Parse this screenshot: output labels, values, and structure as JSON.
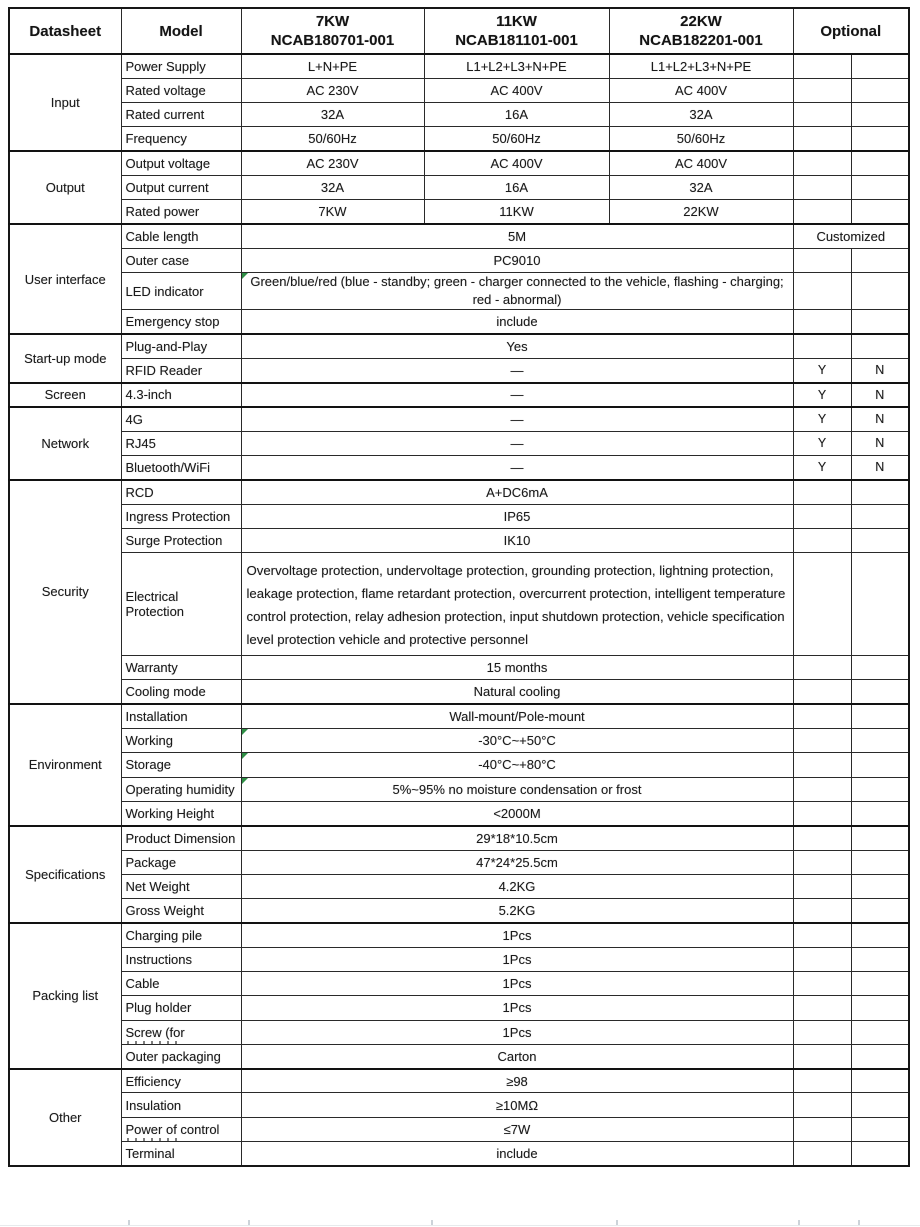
{
  "header": {
    "datasheet": "Datasheet",
    "model": "Model",
    "models": [
      {
        "power": "7KW",
        "code": "NCAB180701-001"
      },
      {
        "power": "11KW",
        "code": "NCAB181101-001"
      },
      {
        "power": "22KW",
        "code": "NCAB182201-001"
      }
    ],
    "optional": "Optional"
  },
  "optional_yes": "Y",
  "optional_no": "N",
  "sections": [
    {
      "name": "Input",
      "rows": [
        {
          "label": "Power Supply",
          "values": [
            "L+N+PE",
            "L1+L2+L3+N+PE",
            "L1+L2+L3+N+PE"
          ]
        },
        {
          "label": "Rated voltage",
          "values": [
            "AC 230V",
            "AC 400V",
            "AC 400V"
          ]
        },
        {
          "label": "Rated current",
          "values": [
            "32A",
            "16A",
            "32A"
          ]
        },
        {
          "label": "Frequency",
          "values": [
            "50/60Hz",
            "50/60Hz",
            "50/60Hz"
          ]
        }
      ]
    },
    {
      "name": "Output",
      "rows": [
        {
          "label": "Output voltage",
          "values": [
            "AC 230V",
            "AC 400V",
            "AC 400V"
          ]
        },
        {
          "label": "Output current",
          "values": [
            "32A",
            "16A",
            "32A"
          ]
        },
        {
          "label": "Rated power",
          "values": [
            "7KW",
            "11KW",
            "22KW"
          ]
        }
      ]
    },
    {
      "name": "User interface",
      "rows": [
        {
          "label": "Cable length",
          "span": "5M",
          "optional": "Customized"
        },
        {
          "label": "Outer case",
          "span": "PC9010"
        },
        {
          "label": "LED indicator",
          "span": "Green/blue/red (blue - standby; green - charger connected to the vehicle, flashing - charging; red - abnormal)"
        },
        {
          "label": "Emergency stop",
          "span": "include"
        }
      ]
    },
    {
      "name": "Start-up mode",
      "rows": [
        {
          "label": "Plug-and-Play",
          "span": "Yes"
        },
        {
          "label": "RFID Reader",
          "span": "—",
          "yn": true
        }
      ]
    },
    {
      "name": "Screen",
      "rows": [
        {
          "label": "4.3-inch",
          "span": "—",
          "yn": true
        }
      ]
    },
    {
      "name": "Network",
      "rows": [
        {
          "label": "4G",
          "span": "—",
          "yn": true
        },
        {
          "label": "RJ45",
          "span": "—",
          "yn": true
        },
        {
          "label": "Bluetooth/WiFi",
          "span": "—",
          "yn": true
        }
      ]
    },
    {
      "name": "Security",
      "rows": [
        {
          "label": "RCD",
          "span": "A+DC6mA"
        },
        {
          "label": "Ingress Protection",
          "span": "IP65"
        },
        {
          "label": "Surge Protection",
          "span": "IK10"
        },
        {
          "label": "Electrical Protection",
          "span": "Overvoltage protection, undervoltage protection, grounding protection, lightning protection, leakage protection, flame retardant protection, overcurrent protection, intelligent temperature control protection, relay adhesion protection, input shutdown protection, vehicle specification level protection vehicle and protective personnel"
        },
        {
          "label": "Warranty",
          "span": "15 months"
        },
        {
          "label": "Cooling mode",
          "span": "Natural cooling"
        }
      ]
    },
    {
      "name": "Environment",
      "rows": [
        {
          "label": "Installation",
          "span": "Wall-mount/Pole-mount"
        },
        {
          "label": "Working",
          "span": "-30°C~+50°C"
        },
        {
          "label": "Storage",
          "span": "-40°C~+80°C"
        },
        {
          "label": "Operating humidity",
          "span": "5%~95%  no moisture condensation or frost"
        },
        {
          "label": "Working Height",
          "span": "<2000M"
        }
      ]
    },
    {
      "name": "Specifications",
      "rows": [
        {
          "label": "Product Dimension",
          "span": "29*18*10.5cm"
        },
        {
          "label": "Package",
          "span": "47*24*25.5cm"
        },
        {
          "label": "Net Weight",
          "span": "4.2KG"
        },
        {
          "label": "Gross Weight",
          "span": "5.2KG"
        }
      ]
    },
    {
      "name": "Packing list",
      "rows": [
        {
          "label": "Charging pile",
          "span": "1Pcs"
        },
        {
          "label": "Instructions",
          "span": "1Pcs"
        },
        {
          "label": "Cable",
          "span": "1Pcs"
        },
        {
          "label": "Plug holder",
          "span": "1Pcs"
        },
        {
          "label": "Screw (for",
          "span": "1Pcs",
          "clipped": true
        },
        {
          "label": "Outer packaging",
          "span": "Carton"
        }
      ]
    },
    {
      "name": "Other",
      "rows": [
        {
          "label": "Efficiency",
          "span": "≥98"
        },
        {
          "label": "Insulation",
          "span": "≥10MΩ"
        },
        {
          "label": "Power of control",
          "span": "≤7W",
          "clipped": true
        },
        {
          "label": "Terminal",
          "span": "include"
        }
      ]
    }
  ],
  "decorations": {
    "flag_icon_rows": [
      "LED indicator",
      "Working",
      "Storage",
      "Operating humidity"
    ],
    "flag_color": "#2f8f46",
    "border_color": "#161616",
    "text_color": "#1b1b1b"
  }
}
